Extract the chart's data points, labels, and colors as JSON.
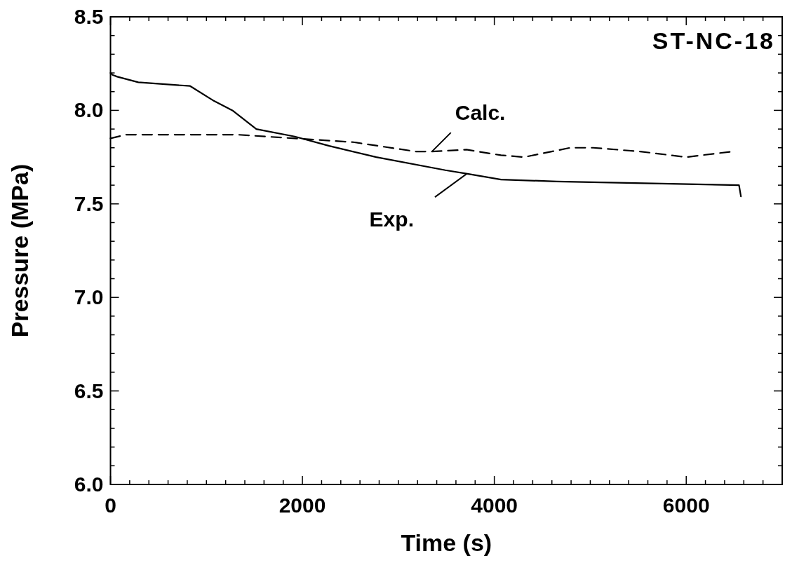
{
  "chart_data": {
    "type": "line",
    "title": "ST-NC-18",
    "xlabel": "Time (s)",
    "ylabel": "Pressure (MPa)",
    "xlim": [
      0,
      7000
    ],
    "ylim": [
      6.0,
      8.5
    ],
    "xticks": [
      0,
      {
        "value": 200,
        "label": null
      },
      {
        "value": 400,
        "label": null
      },
      {
        "value": 600,
        "label": null
      },
      {
        "value": 800,
        "label": null
      },
      {
        "value": 1000,
        "label": null
      },
      {
        "value": 1200,
        "label": null
      },
      {
        "value": 1400,
        "label": null
      },
      {
        "value": 1600,
        "label": null
      },
      {
        "value": 1800,
        "label": null
      },
      2000,
      {
        "value": 2200,
        "label": null
      },
      {
        "value": 2400,
        "label": null
      },
      {
        "value": 2600,
        "label": null
      },
      {
        "value": 2800,
        "label": null
      },
      {
        "value": 3000,
        "label": null
      },
      {
        "value": 3200,
        "label": null
      },
      {
        "value": 3400,
        "label": null
      },
      {
        "value": 3600,
        "label": null
      },
      {
        "value": 3800,
        "label": null
      },
      4000,
      {
        "value": 4200,
        "label": null
      },
      {
        "value": 4400,
        "label": null
      },
      {
        "value": 4600,
        "label": null
      },
      {
        "value": 4800,
        "label": null
      },
      {
        "value": 5000,
        "label": null
      },
      {
        "value": 5200,
        "label": null
      },
      {
        "value": 5400,
        "label": null
      },
      {
        "value": 5600,
        "label": null
      },
      {
        "value": 5800,
        "label": null
      },
      6000,
      {
        "value": 6200,
        "label": null
      },
      {
        "value": 6400,
        "label": null
      },
      {
        "value": 6600,
        "label": null
      },
      {
        "value": 6800,
        "label": null
      }
    ],
    "yticks": [
      {
        "value": 6.0,
        "label": "6.0"
      },
      {
        "value": 6.1,
        "label": null
      },
      {
        "value": 6.2,
        "label": null
      },
      {
        "value": 6.3,
        "label": null
      },
      {
        "value": 6.4,
        "label": null
      },
      6.5,
      {
        "value": 6.6,
        "label": null
      },
      {
        "value": 6.7,
        "label": null
      },
      {
        "value": 6.8,
        "label": null
      },
      {
        "value": 6.9,
        "label": null
      },
      {
        "value": 7.0,
        "label": "7.0"
      },
      {
        "value": 7.1,
        "label": null
      },
      {
        "value": 7.2,
        "label": null
      },
      {
        "value": 7.3,
        "label": null
      },
      {
        "value": 7.4,
        "label": null
      },
      7.5,
      {
        "value": 7.6,
        "label": null
      },
      {
        "value": 7.7,
        "label": null
      },
      {
        "value": 7.8,
        "label": null
      },
      {
        "value": 7.9,
        "label": null
      },
      {
        "value": 8.0,
        "label": "8.0"
      },
      {
        "value": 8.1,
        "label": null
      },
      {
        "value": 8.2,
        "label": null
      },
      {
        "value": 8.3,
        "label": null
      },
      {
        "value": 8.4,
        "label": null
      },
      8.5
    ],
    "series": [
      {
        "color": "#000000",
        "line_style": "solid",
        "x": [
          0,
          20,
          70,
          290,
          830,
          1080,
          1270,
          1520,
          1920,
          2280,
          2770,
          3490,
          3730,
          4070,
          4650,
          6550,
          6570
        ],
        "values": [
          8.2,
          8.19,
          8.18,
          8.15,
          8.13,
          8.05,
          8.0,
          7.9,
          7.86,
          7.81,
          7.75,
          7.68,
          7.66,
          7.63,
          7.62,
          7.6,
          7.54
        ]
      },
      {
        "color": "#000000",
        "line_style": "dashed",
        "x": [
          0,
          160,
          1320,
          1920,
          2530,
          3180,
          3350,
          3710,
          4070,
          4310,
          4790,
          5030,
          5520,
          6000,
          6480
        ],
        "values": [
          7.85,
          7.87,
          7.87,
          7.85,
          7.83,
          7.78,
          7.78,
          7.79,
          7.76,
          7.75,
          7.8,
          7.8,
          7.78,
          7.75,
          7.78
        ]
      }
    ],
    "annotations": [
      {
        "text": "Calc.",
        "x": 3350,
        "y": 7.78
      },
      {
        "text": "Exp.",
        "x": 3710,
        "y": 7.66
      }
    ]
  }
}
